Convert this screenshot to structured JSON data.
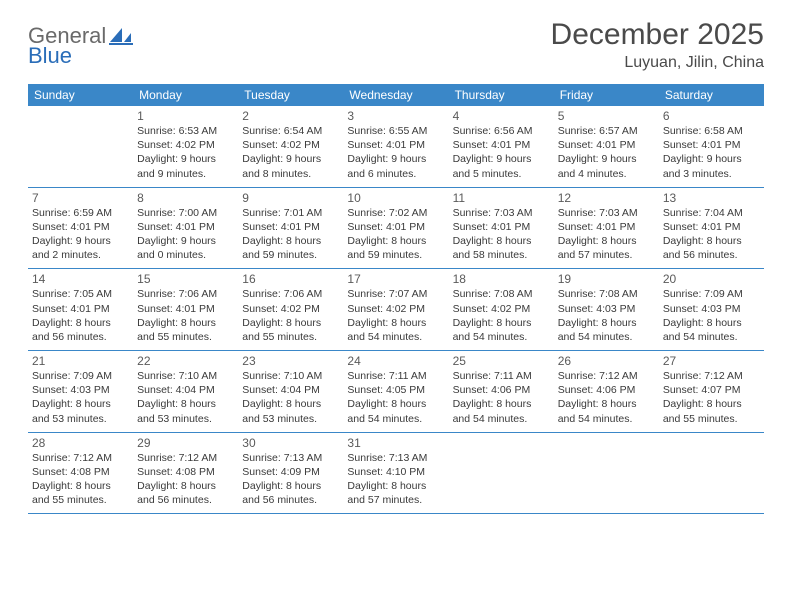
{
  "logo": {
    "text1": "General",
    "text2": "Blue"
  },
  "title": "December 2025",
  "location": "Luyuan, Jilin, China",
  "colors": {
    "header_bg": "#3a87c8",
    "header_text": "#ffffff",
    "rule": "#3a87c8",
    "body_text": "#3a3a3a",
    "logo_gray": "#6a6a6a",
    "logo_blue": "#2a6db8"
  },
  "dow": [
    "Sunday",
    "Monday",
    "Tuesday",
    "Wednesday",
    "Thursday",
    "Friday",
    "Saturday"
  ],
  "weeks": [
    [
      {
        "n": "",
        "l1": "",
        "l2": "",
        "l3": "",
        "l4": ""
      },
      {
        "n": "1",
        "l1": "Sunrise: 6:53 AM",
        "l2": "Sunset: 4:02 PM",
        "l3": "Daylight: 9 hours",
        "l4": "and 9 minutes."
      },
      {
        "n": "2",
        "l1": "Sunrise: 6:54 AM",
        "l2": "Sunset: 4:02 PM",
        "l3": "Daylight: 9 hours",
        "l4": "and 8 minutes."
      },
      {
        "n": "3",
        "l1": "Sunrise: 6:55 AM",
        "l2": "Sunset: 4:01 PM",
        "l3": "Daylight: 9 hours",
        "l4": "and 6 minutes."
      },
      {
        "n": "4",
        "l1": "Sunrise: 6:56 AM",
        "l2": "Sunset: 4:01 PM",
        "l3": "Daylight: 9 hours",
        "l4": "and 5 minutes."
      },
      {
        "n": "5",
        "l1": "Sunrise: 6:57 AM",
        "l2": "Sunset: 4:01 PM",
        "l3": "Daylight: 9 hours",
        "l4": "and 4 minutes."
      },
      {
        "n": "6",
        "l1": "Sunrise: 6:58 AM",
        "l2": "Sunset: 4:01 PM",
        "l3": "Daylight: 9 hours",
        "l4": "and 3 minutes."
      }
    ],
    [
      {
        "n": "7",
        "l1": "Sunrise: 6:59 AM",
        "l2": "Sunset: 4:01 PM",
        "l3": "Daylight: 9 hours",
        "l4": "and 2 minutes."
      },
      {
        "n": "8",
        "l1": "Sunrise: 7:00 AM",
        "l2": "Sunset: 4:01 PM",
        "l3": "Daylight: 9 hours",
        "l4": "and 0 minutes."
      },
      {
        "n": "9",
        "l1": "Sunrise: 7:01 AM",
        "l2": "Sunset: 4:01 PM",
        "l3": "Daylight: 8 hours",
        "l4": "and 59 minutes."
      },
      {
        "n": "10",
        "l1": "Sunrise: 7:02 AM",
        "l2": "Sunset: 4:01 PM",
        "l3": "Daylight: 8 hours",
        "l4": "and 59 minutes."
      },
      {
        "n": "11",
        "l1": "Sunrise: 7:03 AM",
        "l2": "Sunset: 4:01 PM",
        "l3": "Daylight: 8 hours",
        "l4": "and 58 minutes."
      },
      {
        "n": "12",
        "l1": "Sunrise: 7:03 AM",
        "l2": "Sunset: 4:01 PM",
        "l3": "Daylight: 8 hours",
        "l4": "and 57 minutes."
      },
      {
        "n": "13",
        "l1": "Sunrise: 7:04 AM",
        "l2": "Sunset: 4:01 PM",
        "l3": "Daylight: 8 hours",
        "l4": "and 56 minutes."
      }
    ],
    [
      {
        "n": "14",
        "l1": "Sunrise: 7:05 AM",
        "l2": "Sunset: 4:01 PM",
        "l3": "Daylight: 8 hours",
        "l4": "and 56 minutes."
      },
      {
        "n": "15",
        "l1": "Sunrise: 7:06 AM",
        "l2": "Sunset: 4:01 PM",
        "l3": "Daylight: 8 hours",
        "l4": "and 55 minutes."
      },
      {
        "n": "16",
        "l1": "Sunrise: 7:06 AM",
        "l2": "Sunset: 4:02 PM",
        "l3": "Daylight: 8 hours",
        "l4": "and 55 minutes."
      },
      {
        "n": "17",
        "l1": "Sunrise: 7:07 AM",
        "l2": "Sunset: 4:02 PM",
        "l3": "Daylight: 8 hours",
        "l4": "and 54 minutes."
      },
      {
        "n": "18",
        "l1": "Sunrise: 7:08 AM",
        "l2": "Sunset: 4:02 PM",
        "l3": "Daylight: 8 hours",
        "l4": "and 54 minutes."
      },
      {
        "n": "19",
        "l1": "Sunrise: 7:08 AM",
        "l2": "Sunset: 4:03 PM",
        "l3": "Daylight: 8 hours",
        "l4": "and 54 minutes."
      },
      {
        "n": "20",
        "l1": "Sunrise: 7:09 AM",
        "l2": "Sunset: 4:03 PM",
        "l3": "Daylight: 8 hours",
        "l4": "and 54 minutes."
      }
    ],
    [
      {
        "n": "21",
        "l1": "Sunrise: 7:09 AM",
        "l2": "Sunset: 4:03 PM",
        "l3": "Daylight: 8 hours",
        "l4": "and 53 minutes."
      },
      {
        "n": "22",
        "l1": "Sunrise: 7:10 AM",
        "l2": "Sunset: 4:04 PM",
        "l3": "Daylight: 8 hours",
        "l4": "and 53 minutes."
      },
      {
        "n": "23",
        "l1": "Sunrise: 7:10 AM",
        "l2": "Sunset: 4:04 PM",
        "l3": "Daylight: 8 hours",
        "l4": "and 53 minutes."
      },
      {
        "n": "24",
        "l1": "Sunrise: 7:11 AM",
        "l2": "Sunset: 4:05 PM",
        "l3": "Daylight: 8 hours",
        "l4": "and 54 minutes."
      },
      {
        "n": "25",
        "l1": "Sunrise: 7:11 AM",
        "l2": "Sunset: 4:06 PM",
        "l3": "Daylight: 8 hours",
        "l4": "and 54 minutes."
      },
      {
        "n": "26",
        "l1": "Sunrise: 7:12 AM",
        "l2": "Sunset: 4:06 PM",
        "l3": "Daylight: 8 hours",
        "l4": "and 54 minutes."
      },
      {
        "n": "27",
        "l1": "Sunrise: 7:12 AM",
        "l2": "Sunset: 4:07 PM",
        "l3": "Daylight: 8 hours",
        "l4": "and 55 minutes."
      }
    ],
    [
      {
        "n": "28",
        "l1": "Sunrise: 7:12 AM",
        "l2": "Sunset: 4:08 PM",
        "l3": "Daylight: 8 hours",
        "l4": "and 55 minutes."
      },
      {
        "n": "29",
        "l1": "Sunrise: 7:12 AM",
        "l2": "Sunset: 4:08 PM",
        "l3": "Daylight: 8 hours",
        "l4": "and 56 minutes."
      },
      {
        "n": "30",
        "l1": "Sunrise: 7:13 AM",
        "l2": "Sunset: 4:09 PM",
        "l3": "Daylight: 8 hours",
        "l4": "and 56 minutes."
      },
      {
        "n": "31",
        "l1": "Sunrise: 7:13 AM",
        "l2": "Sunset: 4:10 PM",
        "l3": "Daylight: 8 hours",
        "l4": "and 57 minutes."
      },
      {
        "n": "",
        "l1": "",
        "l2": "",
        "l3": "",
        "l4": ""
      },
      {
        "n": "",
        "l1": "",
        "l2": "",
        "l3": "",
        "l4": ""
      },
      {
        "n": "",
        "l1": "",
        "l2": "",
        "l3": "",
        "l4": ""
      }
    ]
  ]
}
